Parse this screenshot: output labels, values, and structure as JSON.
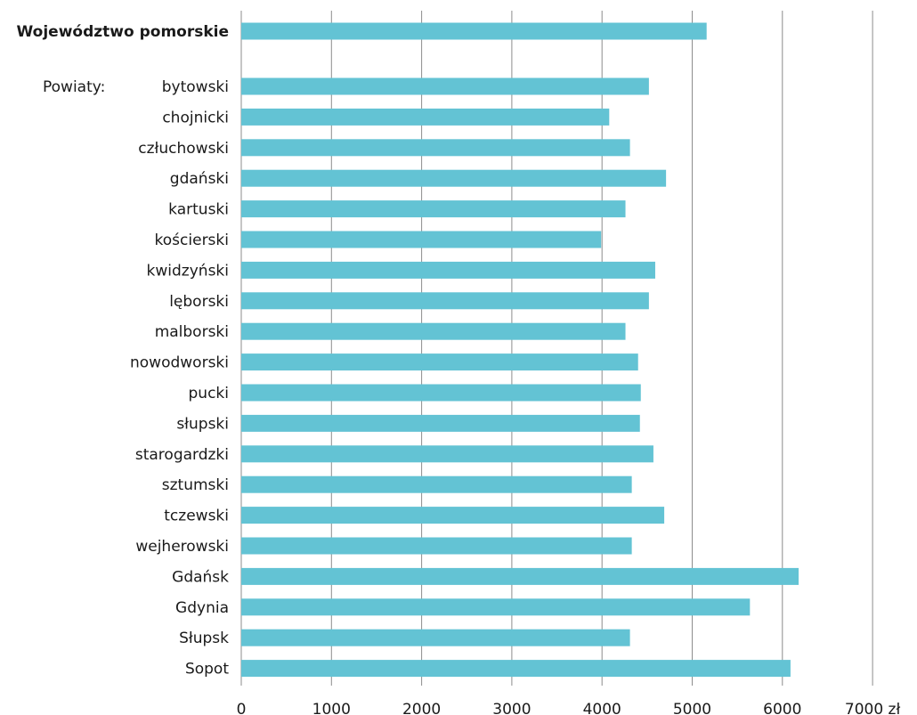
{
  "chart_data": {
    "type": "bar",
    "orientation": "horizontal",
    "bar_color": "#63c3d4",
    "grid": true,
    "xlim": [
      0,
      7000
    ],
    "x_ticks": [
      "0",
      "1000",
      "2000",
      "3000",
      "4000",
      "5000",
      "6000",
      "7000 zł"
    ],
    "group_label": "Powiaty:",
    "categories": [
      {
        "label": "Województwo pomorskie",
        "value": 5160,
        "bold": true
      },
      {
        "label": "bytowski",
        "value": 4520
      },
      {
        "label": "chojnicki",
        "value": 4080
      },
      {
        "label": "człuchowski",
        "value": 4310
      },
      {
        "label": "gdański",
        "value": 4710
      },
      {
        "label": "kartuski",
        "value": 4260
      },
      {
        "label": "kościerski",
        "value": 3990
      },
      {
        "label": "kwidzyński",
        "value": 4590
      },
      {
        "label": "lęborski",
        "value": 4520
      },
      {
        "label": "malborski",
        "value": 4260
      },
      {
        "label": "nowodworski",
        "value": 4400
      },
      {
        "label": "pucki",
        "value": 4430
      },
      {
        "label": "słupski",
        "value": 4420
      },
      {
        "label": "starogardzki",
        "value": 4570
      },
      {
        "label": "sztumski",
        "value": 4330
      },
      {
        "label": "tczewski",
        "value": 4690
      },
      {
        "label": "wejherowski",
        "value": 4330
      },
      {
        "label": "Gdańsk",
        "value": 6180
      },
      {
        "label": "Gdynia",
        "value": 5640
      },
      {
        "label": "Słupsk",
        "value": 4310
      },
      {
        "label": "Sopot",
        "value": 6090
      }
    ]
  }
}
